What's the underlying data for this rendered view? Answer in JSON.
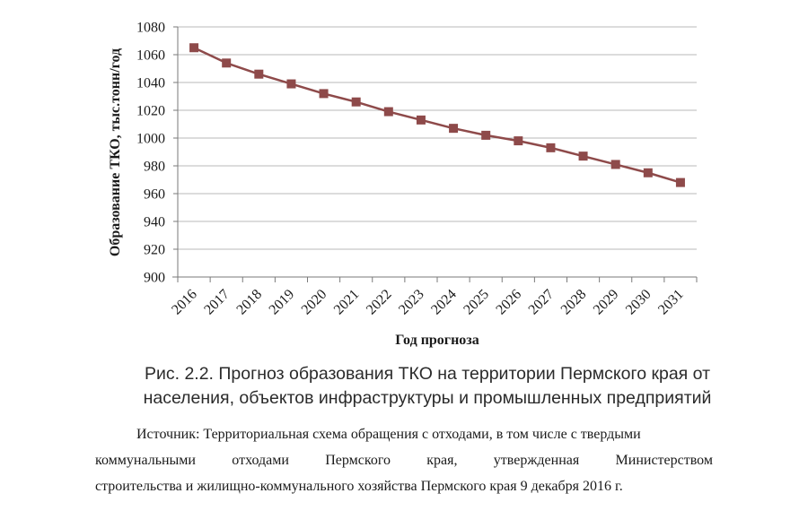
{
  "chart_data": {
    "type": "line",
    "xlabel": "Год прогноза",
    "ylabel": "Образование ТКО, тыс.тонн/год",
    "x": [
      "2016",
      "2017",
      "2018",
      "2019",
      "2020",
      "2021",
      "2022",
      "2023",
      "2024",
      "2025",
      "2026",
      "2027",
      "2028",
      "2029",
      "2030",
      "2031"
    ],
    "series": [
      {
        "values": [
          1065,
          1054,
          1046,
          1039,
          1032,
          1026,
          1019,
          1013,
          1007,
          1002,
          998,
          993,
          987,
          981,
          975,
          968
        ],
        "color": "#8e4a4a"
      }
    ],
    "ylim": [
      900,
      1080
    ],
    "yticks": [
      900,
      920,
      940,
      960,
      980,
      1000,
      1020,
      1040,
      1060,
      1080
    ],
    "grid": true,
    "legend": "none"
  },
  "caption": {
    "line1": "Рис. 2.2. Прогноз образования ТКО на территории Пермского края от",
    "line2": "населения, объектов инфраструктуры и промышленных предприятий"
  },
  "source": {
    "line1": "Источник: Территориальная схема обращения с отходами, в том числе с твердыми",
    "line2": "коммунальными отходами Пермского края, утвержденная Министерством",
    "line3": "строительства и жилищно-коммунального хозяйства Пермского края 9 декабря 2016 г."
  }
}
